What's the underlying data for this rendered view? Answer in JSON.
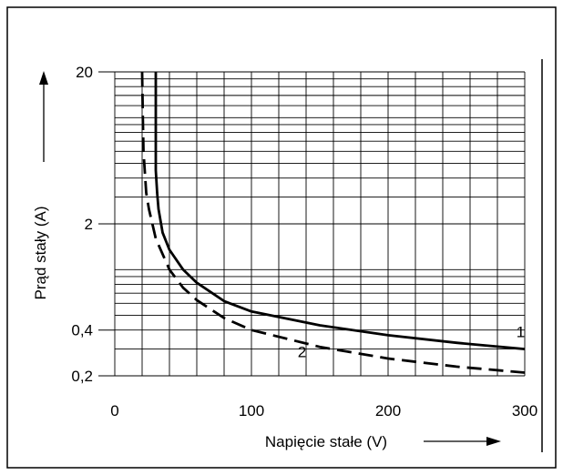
{
  "chart_data": {
    "type": "line",
    "title": "",
    "xlabel": "Napięcie stałe (V)",
    "ylabel": "Prąd stały (A)",
    "xlim": [
      0,
      300
    ],
    "ylim": [
      0.2,
      20
    ],
    "y_scale": "log",
    "x_ticks": [
      0,
      100,
      200,
      300
    ],
    "x_tick_labels": [
      "0",
      "100",
      "200",
      "300"
    ],
    "y_ticks": [
      0.2,
      0.4,
      2,
      20
    ],
    "y_tick_labels": [
      "0,2",
      "0,4",
      "2",
      "20"
    ],
    "grid": true,
    "series": [
      {
        "name": "1",
        "line_style": "solid",
        "x": [
          30,
          30,
          31,
          32,
          35,
          40,
          50,
          60,
          80,
          100,
          150,
          200,
          250,
          300
        ],
        "y": [
          20,
          4.5,
          3.2,
          2.5,
          1.75,
          1.35,
          1.0,
          0.82,
          0.62,
          0.53,
          0.43,
          0.37,
          0.33,
          0.3
        ]
      },
      {
        "name": "2",
        "line_style": "dashed",
        "x": [
          20,
          20.5,
          21,
          23,
          25,
          30,
          40,
          50,
          60,
          80,
          100,
          150,
          200,
          250,
          300
        ],
        "y": [
          20,
          10,
          6,
          3.2,
          2.5,
          1.6,
          1.0,
          0.76,
          0.63,
          0.48,
          0.4,
          0.31,
          0.26,
          0.23,
          0.21
        ]
      }
    ]
  }
}
